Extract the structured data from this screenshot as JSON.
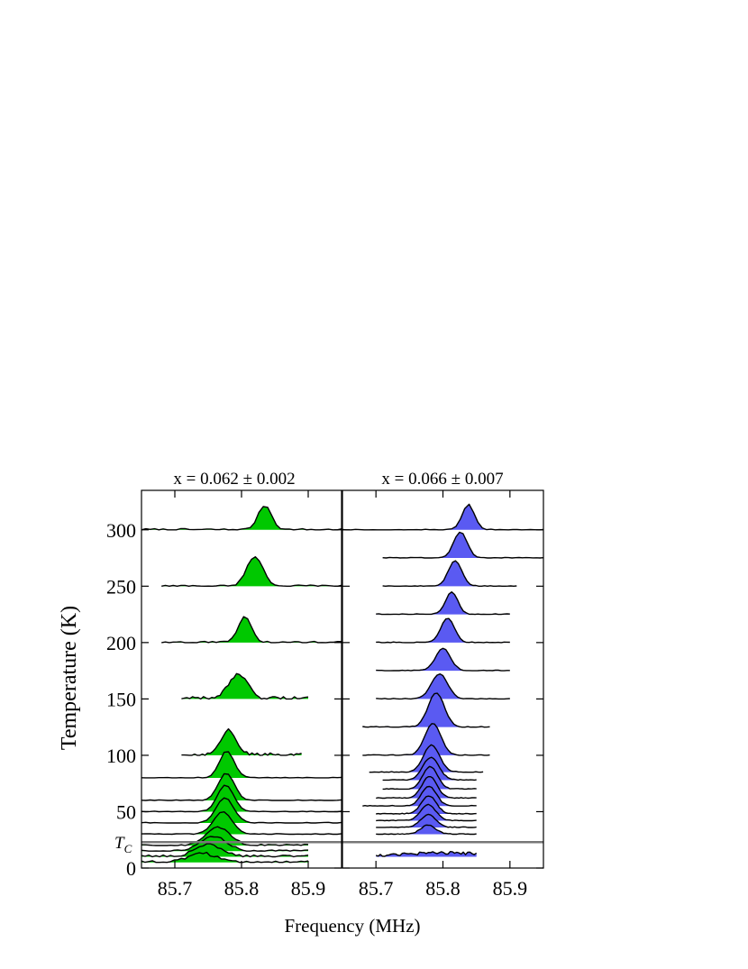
{
  "figure": {
    "ylabel": "Temperature (K)",
    "xlabel": "Frequency (MHz)",
    "tc_label_main": "T",
    "tc_label_sub": "C",
    "tc_temperature": 23,
    "colors": {
      "left_fill": "#00c800",
      "right_fill": "#5a5af2",
      "tc_line": "#777777",
      "stroke": "#000000"
    }
  },
  "chart_data": [
    {
      "type": "area",
      "title": "x = 0.062 ± 0.002",
      "xlim": [
        85.65,
        85.95
      ],
      "ylim": [
        0,
        335
      ],
      "xticks": [
        85.7,
        85.8,
        85.9
      ],
      "xtick_labels": [
        "85.7",
        "85.8",
        "85.9"
      ],
      "yticks": [
        0,
        50,
        100,
        150,
        200,
        250,
        300
      ],
      "ytick_labels": [
        "0",
        "50",
        "100",
        "150",
        "200",
        "250",
        "300"
      ],
      "spectra": [
        {
          "T": 300,
          "x0": 85.65,
          "x1": 85.95,
          "center": 85.835,
          "width": 0.01,
          "height": 27,
          "noise": 2
        },
        {
          "T": 250,
          "x0": 85.68,
          "x1": 85.95,
          "center": 85.82,
          "width": 0.012,
          "height": 33,
          "noise": 2
        },
        {
          "T": 200,
          "x0": 85.68,
          "x1": 85.95,
          "center": 85.805,
          "width": 0.01,
          "height": 28,
          "noise": 2
        },
        {
          "T": 150,
          "x0": 85.71,
          "x1": 85.9,
          "center": 85.795,
          "width": 0.014,
          "height": 26,
          "noise": 4
        },
        {
          "T": 100,
          "x0": 85.71,
          "x1": 85.89,
          "center": 85.78,
          "width": 0.012,
          "height": 27,
          "noise": 4
        },
        {
          "T": 80,
          "x0": 85.65,
          "x1": 85.95,
          "center": 85.778,
          "width": 0.011,
          "height": 30,
          "noise": 1
        },
        {
          "T": 60,
          "x0": 85.65,
          "x1": 85.95,
          "center": 85.777,
          "width": 0.012,
          "height": 30,
          "noise": 1
        },
        {
          "T": 50,
          "x0": 85.65,
          "x1": 85.95,
          "center": 85.776,
          "width": 0.012,
          "height": 30,
          "noise": 1
        },
        {
          "T": 40,
          "x0": 85.65,
          "x1": 85.95,
          "center": 85.775,
          "width": 0.013,
          "height": 28,
          "noise": 1
        },
        {
          "T": 30,
          "x0": 85.65,
          "x1": 85.95,
          "center": 85.772,
          "width": 0.014,
          "height": 25,
          "noise": 1
        },
        {
          "T": 20,
          "x0": 85.65,
          "x1": 85.9,
          "center": 85.765,
          "width": 0.018,
          "height": 20,
          "noise": 2
        },
        {
          "T": 15,
          "x0": 85.65,
          "x1": 85.9,
          "center": 85.758,
          "width": 0.02,
          "height": 16,
          "noise": 2
        },
        {
          "T": 10,
          "x0": 85.65,
          "x1": 85.9,
          "center": 85.75,
          "width": 0.02,
          "height": 13,
          "noise": 3
        },
        {
          "T": 5,
          "x0": 85.65,
          "x1": 85.9,
          "center": 85.74,
          "width": 0.02,
          "height": 10,
          "noise": 3
        }
      ]
    },
    {
      "type": "area",
      "title": "x = 0.066 ± 0.007",
      "xlim": [
        85.65,
        85.95
      ],
      "ylim": [
        0,
        335
      ],
      "xticks": [
        85.7,
        85.8,
        85.9
      ],
      "xtick_labels": [
        "85.7",
        "85.8",
        "85.9"
      ],
      "yticks": [
        0,
        50,
        100,
        150,
        200,
        250,
        300
      ],
      "spectra": [
        {
          "T": 300,
          "x0": 85.65,
          "x1": 85.95,
          "center": 85.838,
          "width": 0.009,
          "height": 28,
          "noise": 1
        },
        {
          "T": 275,
          "x0": 85.71,
          "x1": 85.95,
          "center": 85.826,
          "width": 0.01,
          "height": 29,
          "noise": 1
        },
        {
          "T": 250,
          "x0": 85.71,
          "x1": 85.91,
          "center": 85.818,
          "width": 0.01,
          "height": 28,
          "noise": 1
        },
        {
          "T": 225,
          "x0": 85.7,
          "x1": 85.9,
          "center": 85.813,
          "width": 0.009,
          "height": 25,
          "noise": 1
        },
        {
          "T": 200,
          "x0": 85.7,
          "x1": 85.9,
          "center": 85.807,
          "width": 0.01,
          "height": 27,
          "noise": 1
        },
        {
          "T": 175,
          "x0": 85.7,
          "x1": 85.9,
          "center": 85.8,
          "width": 0.011,
          "height": 25,
          "noise": 1
        },
        {
          "T": 150,
          "x0": 85.7,
          "x1": 85.9,
          "center": 85.795,
          "width": 0.012,
          "height": 28,
          "noise": 1
        },
        {
          "T": 125,
          "x0": 85.68,
          "x1": 85.87,
          "center": 85.79,
          "width": 0.012,
          "height": 38,
          "noise": 1
        },
        {
          "T": 100,
          "x0": 85.68,
          "x1": 85.87,
          "center": 85.785,
          "width": 0.012,
          "height": 35,
          "noise": 1
        },
        {
          "T": 85,
          "x0": 85.69,
          "x1": 85.86,
          "center": 85.783,
          "width": 0.012,
          "height": 30,
          "noise": 1
        },
        {
          "T": 78,
          "x0": 85.71,
          "x1": 85.85,
          "center": 85.782,
          "width": 0.012,
          "height": 25,
          "noise": 1
        },
        {
          "T": 70,
          "x0": 85.71,
          "x1": 85.85,
          "center": 85.781,
          "width": 0.011,
          "height": 25,
          "noise": 1
        },
        {
          "T": 62,
          "x0": 85.7,
          "x1": 85.85,
          "center": 85.78,
          "width": 0.011,
          "height": 24,
          "noise": 1
        },
        {
          "T": 55,
          "x0": 85.68,
          "x1": 85.85,
          "center": 85.779,
          "width": 0.011,
          "height": 22,
          "noise": 1
        },
        {
          "T": 48,
          "x0": 85.7,
          "x1": 85.85,
          "center": 85.779,
          "width": 0.011,
          "height": 20,
          "noise": 1
        },
        {
          "T": 42,
          "x0": 85.7,
          "x1": 85.85,
          "center": 85.778,
          "width": 0.011,
          "height": 18,
          "noise": 1
        },
        {
          "T": 36,
          "x0": 85.7,
          "x1": 85.85,
          "center": 85.778,
          "width": 0.011,
          "height": 14,
          "noise": 1
        },
        {
          "T": 30,
          "x0": 85.7,
          "x1": 85.85,
          "center": 85.778,
          "width": 0.011,
          "height": 10,
          "noise": 1
        },
        {
          "T": 10,
          "x0": 85.7,
          "x1": 85.85,
          "center": 85.8,
          "width": 0.06,
          "height": 4,
          "noise": 3
        }
      ]
    }
  ]
}
